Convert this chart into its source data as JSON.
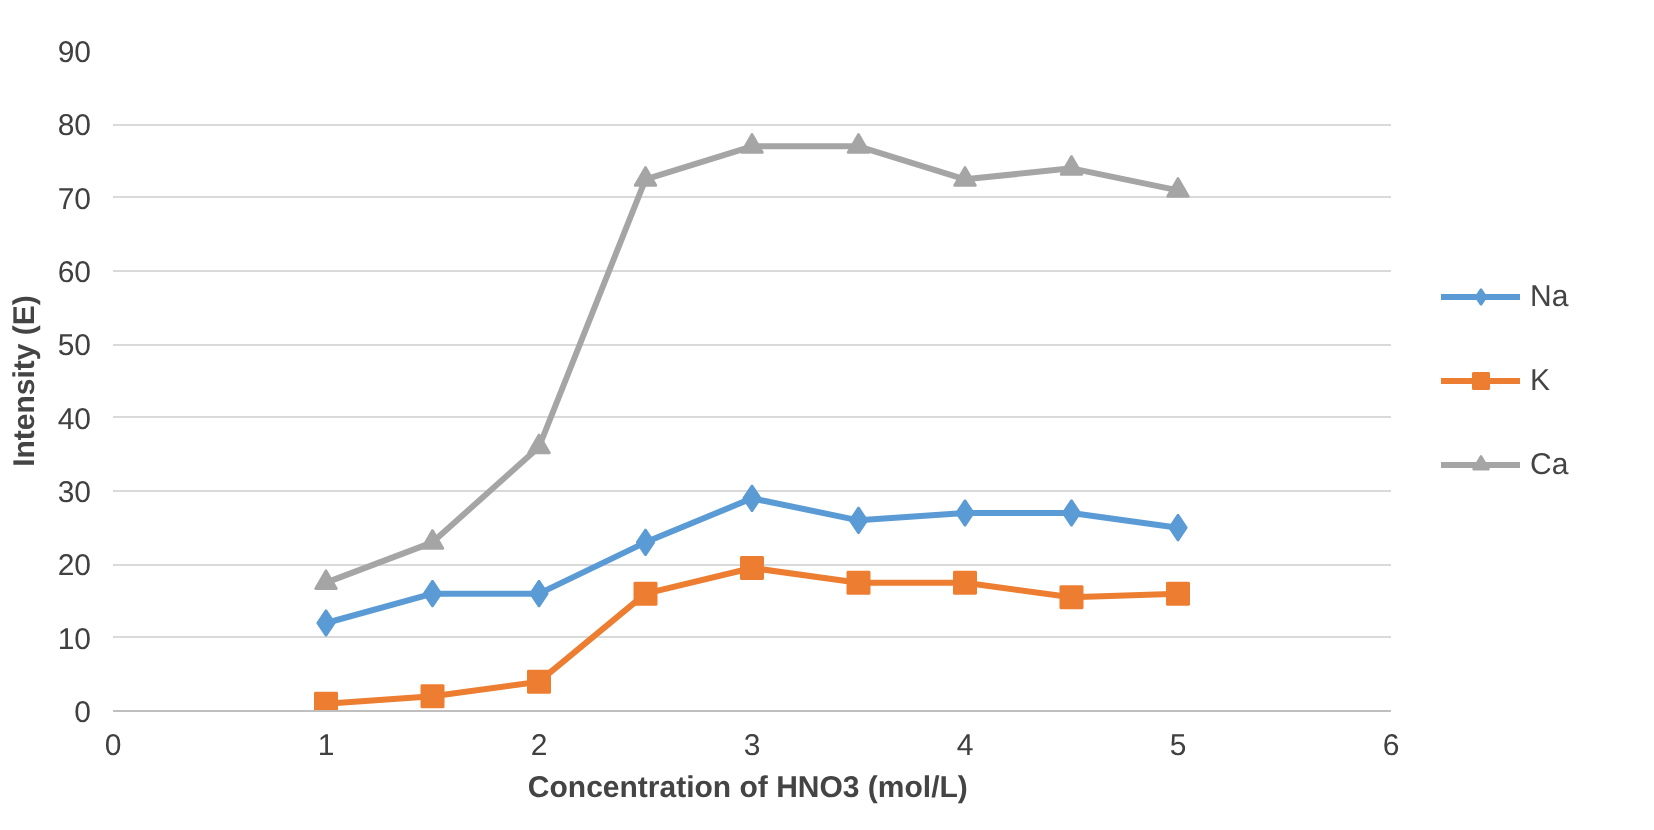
{
  "chart_data": {
    "type": "line",
    "xlabel": "Concentration of HNO3  (mol/L)",
    "ylabel": "Intensity (E)",
    "x": [
      1,
      1.5,
      2,
      2.5,
      3,
      3.5,
      4,
      4.5,
      5
    ],
    "xlim": [
      0,
      6
    ],
    "xticks": [
      0,
      1,
      2,
      3,
      4,
      5,
      6
    ],
    "ylim": [
      0,
      90
    ],
    "yticks": [
      0,
      10,
      20,
      30,
      40,
      50,
      60,
      70,
      80,
      90
    ],
    "grid": "y",
    "legend": "right",
    "series": [
      {
        "name": "Na",
        "color": "#5b9bd5",
        "marker": "diamond",
        "values": [
          12,
          16,
          16,
          23,
          29,
          26,
          27,
          27,
          25
        ]
      },
      {
        "name": "K",
        "color": "#ed7d31",
        "marker": "square",
        "values": [
          1,
          2,
          4,
          16,
          19.5,
          17.5,
          17.5,
          15.5,
          16
        ]
      },
      {
        "name": "Ca",
        "color": "#a5a5a5",
        "marker": "triangle",
        "values": [
          17.5,
          23,
          36,
          72.5,
          77,
          77,
          72.5,
          74,
          71
        ]
      }
    ]
  }
}
